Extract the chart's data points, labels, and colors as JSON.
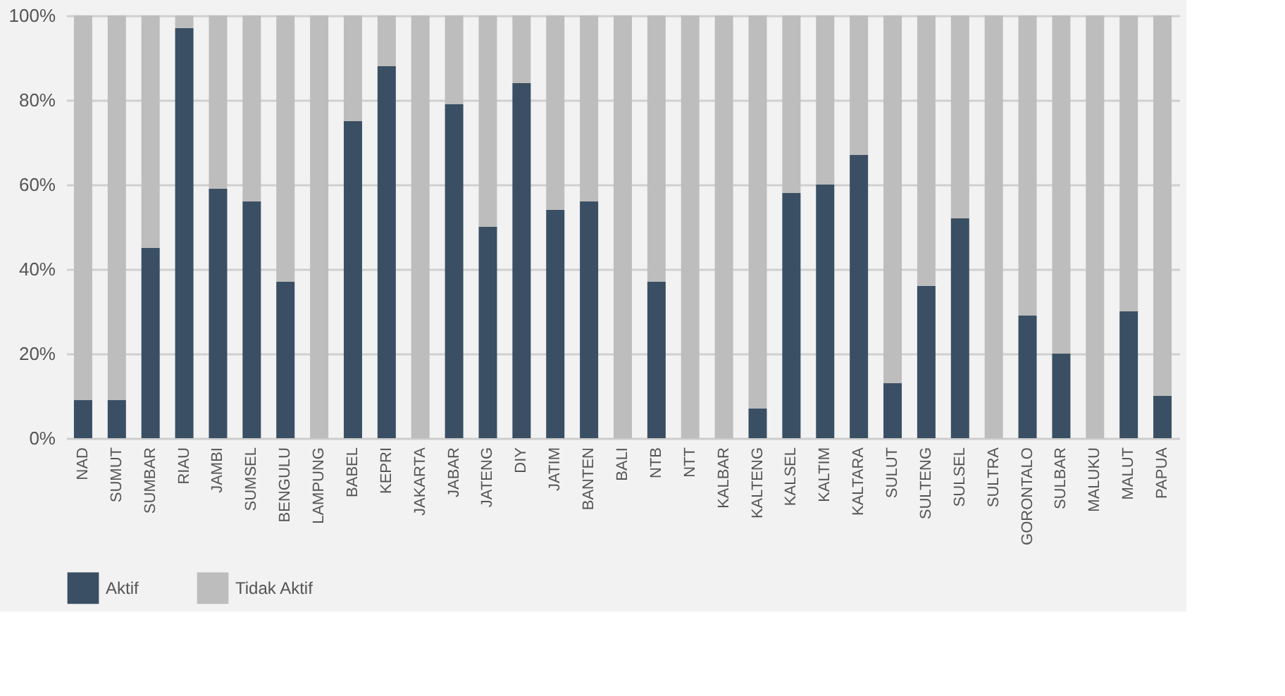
{
  "chart_data": {
    "type": "bar",
    "stacked": true,
    "categories": [
      "NAD",
      "SUMUT",
      "SUMBAR",
      "RIAU",
      "JAMBI",
      "SUMSEL",
      "BENGULU",
      "LAMPUNG",
      "BABEL",
      "KEPRI",
      "JAKARTA",
      "JABAR",
      "JATENG",
      "DIY",
      "JATIM",
      "BANTEN",
      "BALI",
      "NTB",
      "NTT",
      "KALBAR",
      "KALTENG",
      "KALSEL",
      "KALTIM",
      "KALTARA",
      "SULUT",
      "SULTENG",
      "SULSEL",
      "SULTRA",
      "GORONTALO",
      "SULBAR",
      "MALUKU",
      "MALUT",
      "PAPUA"
    ],
    "series": [
      {
        "name": "Aktif",
        "color": "#3a4f63",
        "values": [
          9,
          9,
          45,
          97,
          59,
          56,
          37,
          0,
          75,
          88,
          0,
          79,
          50,
          84,
          54,
          56,
          0,
          37,
          0,
          0,
          7,
          58,
          60,
          67,
          13,
          36,
          52,
          0,
          29,
          20,
          0,
          30,
          10
        ]
      },
      {
        "name": "Tidak Aktif",
        "color": "#bdbdbd",
        "values": [
          91,
          91,
          55,
          3,
          41,
          44,
          63,
          100,
          25,
          12,
          100,
          21,
          50,
          16,
          46,
          44,
          100,
          63,
          100,
          100,
          93,
          42,
          40,
          33,
          87,
          64,
          48,
          100,
          71,
          80,
          100,
          70,
          90
        ]
      }
    ],
    "ylim": [
      0,
      100
    ],
    "yticks": [
      {
        "value": 0,
        "label": "0%"
      },
      {
        "value": 20,
        "label": "20%"
      },
      {
        "value": 40,
        "label": "40%"
      },
      {
        "value": 60,
        "label": "60%"
      },
      {
        "value": 80,
        "label": "80%"
      },
      {
        "value": 100,
        "label": "100%"
      }
    ],
    "grid": "y",
    "legend": "bottom"
  }
}
